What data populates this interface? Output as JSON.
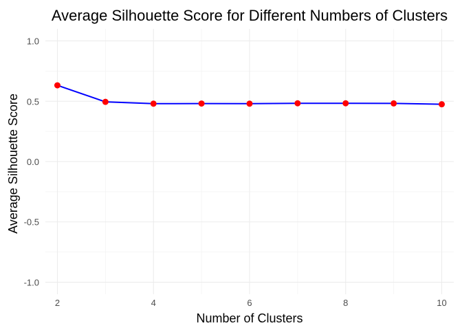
{
  "chart_data": {
    "type": "line",
    "title": "Average Silhouette Score for Different Numbers of Clusters",
    "xlabel": "Number of Clusters",
    "ylabel": "Average Silhouette Score",
    "x": [
      2,
      3,
      4,
      5,
      6,
      7,
      8,
      9,
      10
    ],
    "series": [
      {
        "values": [
          0.632,
          0.495,
          0.48,
          0.481,
          0.48,
          0.483,
          0.483,
          0.482,
          0.475
        ]
      }
    ],
    "xlim": [
      1.75,
      10.25
    ],
    "ylim": [
      -1.1,
      1.1
    ],
    "x_ticks": [
      2,
      4,
      6,
      8,
      10
    ],
    "x_tick_labels": [
      "2",
      "4",
      "6",
      "8",
      "10"
    ],
    "y_ticks": [
      -1.0,
      -0.5,
      0.0,
      0.5,
      1.0
    ],
    "y_tick_labels": [
      "-1.0",
      "-0.5",
      "0.0",
      "0.5",
      "1.0"
    ],
    "grid": true,
    "line_color": "#0000ff",
    "marker_color": "#ff0000"
  }
}
